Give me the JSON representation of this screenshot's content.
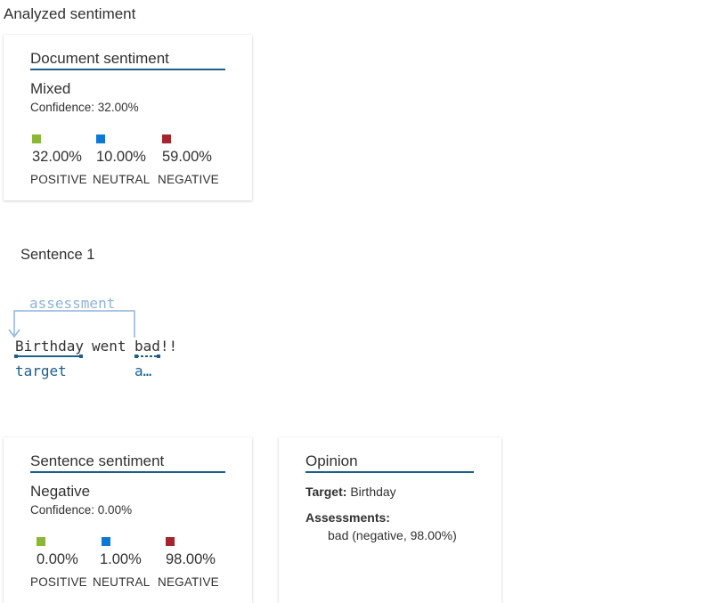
{
  "page_title": "Analyzed sentiment",
  "colors": {
    "positive": "#8ab736",
    "neutral": "#0f78d4",
    "negative": "#a4262c",
    "accent": "#1f5f8b"
  },
  "document_sentiment": {
    "title": "Document sentiment",
    "label": "Mixed",
    "confidence": "Confidence: 32.00%",
    "scores": [
      {
        "value": "32.00%",
        "category": "POSITIVE"
      },
      {
        "value": "10.00%",
        "category": "NEUTRAL"
      },
      {
        "value": "59.00%",
        "category": "NEGATIVE"
      }
    ]
  },
  "sentence": {
    "heading": "Sentence 1",
    "tokens": [
      "Birthday",
      "went",
      "bad!!"
    ],
    "assessment_link_label": "assessment",
    "target_label": "target",
    "assessment_short_label": "a…"
  },
  "sentence_sentiment": {
    "title": "Sentence sentiment",
    "label": "Negative",
    "confidence": "Confidence: 0.00%",
    "scores": [
      {
        "value": "0.00%",
        "category": "POSITIVE"
      },
      {
        "value": "1.00%",
        "category": "NEUTRAL"
      },
      {
        "value": "98.00%",
        "category": "NEGATIVE"
      }
    ]
  },
  "opinion": {
    "title": "Opinion",
    "target_key": "Target:",
    "target_value": "Birthday",
    "assessments_key": "Assessments:",
    "assessment_item": "bad (negative, 98.00%)"
  }
}
